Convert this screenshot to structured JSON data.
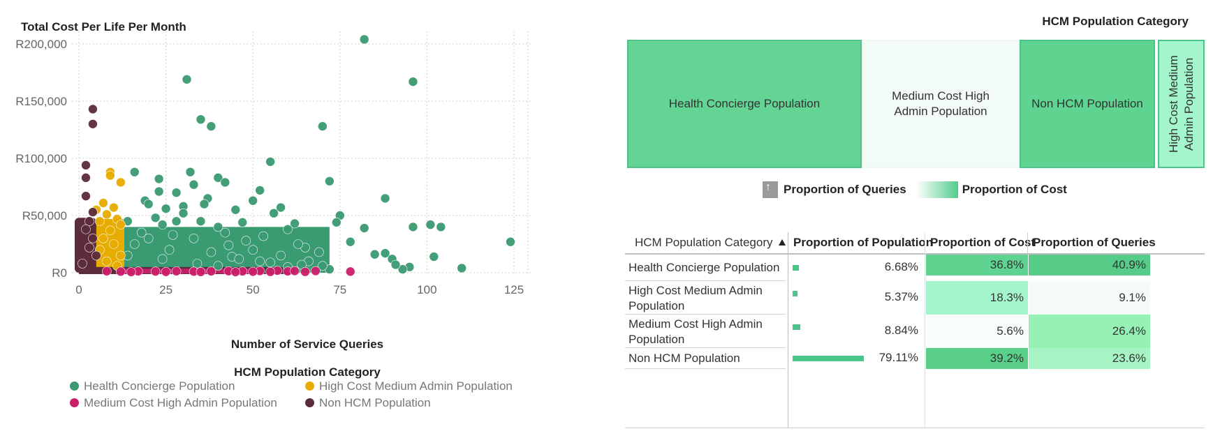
{
  "scatter": {
    "y_axis_title": "Total Cost Per Life Per Month",
    "x_axis_title": "Number of Service Queries",
    "legend_title": "HCM Population Category",
    "legend": [
      {
        "label": "Health Concierge Population",
        "color": "#3a9a72"
      },
      {
        "label": "High Cost Medium Admin Population",
        "color": "#e6ac00"
      },
      {
        "label": "Medium Cost High Admin Population",
        "color": "#cc1f6b"
      },
      {
        "label": "Non HCM Population",
        "color": "#5c2c3a"
      }
    ]
  },
  "chart_data": [
    {
      "type": "scatter",
      "title": "",
      "xlabel": "Number of Service Queries",
      "ylabel": "Total Cost Per Life Per Month",
      "xlim": [
        0,
        128
      ],
      "ylim": [
        0,
        210000
      ],
      "x_ticks": [
        "0",
        "25",
        "50",
        "75",
        "100",
        "125"
      ],
      "y_ticks": [
        "R0",
        "R50,000",
        "R100,000",
        "R150,000",
        "R200,000"
      ],
      "grid": true,
      "legend_position": "bottom",
      "series": [
        {
          "name": "Health Concierge Population",
          "color": "#3a9a72",
          "points": [
            [
              82,
              204000
            ],
            [
              31,
              169000
            ],
            [
              96,
              167000
            ],
            [
              35,
              134000
            ],
            [
              38,
              128000
            ],
            [
              70,
              128000
            ],
            [
              55,
              97000
            ],
            [
              16,
              88000
            ],
            [
              32,
              88000
            ],
            [
              72,
              80000
            ],
            [
              23,
              82000
            ],
            [
              40,
              83000
            ],
            [
              42,
              79000
            ],
            [
              33,
              77000
            ],
            [
              28,
              70000
            ],
            [
              23,
              71000
            ],
            [
              88,
              65000
            ],
            [
              52,
              72000
            ],
            [
              19,
              63000
            ],
            [
              37,
              65000
            ],
            [
              30,
              58000
            ],
            [
              25,
              56000
            ],
            [
              50,
              63000
            ],
            [
              58,
              57000
            ],
            [
              75,
              50000
            ],
            [
              20,
              60000
            ],
            [
              45,
              55000
            ],
            [
              62,
              43000
            ],
            [
              74,
              44000
            ],
            [
              82,
              39000
            ],
            [
              96,
              40000
            ],
            [
              101,
              42000
            ],
            [
              104,
              40000
            ],
            [
              124,
              27000
            ],
            [
              78,
              27000
            ],
            [
              85,
              16000
            ],
            [
              88,
              17000
            ],
            [
              90,
              12000
            ],
            [
              102,
              14000
            ],
            [
              110,
              4000
            ],
            [
              95,
              5000
            ],
            [
              93,
              3000
            ],
            [
              91,
              7000
            ],
            [
              65,
              22000
            ],
            [
              69,
              18000
            ],
            [
              60,
              38000
            ],
            [
              53,
              32000
            ],
            [
              66,
              10000
            ],
            [
              72,
              3000
            ],
            [
              48,
              28000
            ],
            [
              44,
              14000
            ],
            [
              58,
              15000
            ],
            [
              35,
              45000
            ],
            [
              27,
              33000
            ],
            [
              40,
              40000
            ],
            [
              14,
              45000
            ],
            [
              18,
              35000
            ],
            [
              22,
              48000
            ],
            [
              26,
              20000
            ],
            [
              43,
              24000
            ],
            [
              38,
              18000
            ],
            [
              55,
              9000
            ],
            [
              60,
              5000
            ],
            [
              64,
              7000
            ],
            [
              70,
              6000
            ],
            [
              33,
              30000
            ],
            [
              46,
              12000
            ],
            [
              30,
              52000
            ],
            [
              36,
              60000
            ],
            [
              24,
              42000
            ],
            [
              28,
              45000
            ],
            [
              42,
              35000
            ],
            [
              50,
              20000
            ],
            [
              52,
              10000
            ],
            [
              20,
              30000
            ],
            [
              16,
              25000
            ],
            [
              14,
              15000
            ],
            [
              24,
              12000
            ],
            [
              34,
              8000
            ],
            [
              40,
              6000
            ],
            [
              47,
              44000
            ],
            [
              56,
              52000
            ],
            [
              63,
              25000
            ]
          ]
        },
        {
          "name": "High Cost Medium Admin Population",
          "color": "#e6ac00",
          "points": [
            [
              9,
              88000
            ],
            [
              12,
              79000
            ],
            [
              9,
              85000
            ],
            [
              7,
              61000
            ],
            [
              5,
              55000
            ],
            [
              10,
              57000
            ],
            [
              8,
              51000
            ],
            [
              11,
              47000
            ],
            [
              6,
              45000
            ],
            [
              12,
              42000
            ],
            [
              9,
              37000
            ],
            [
              7,
              30000
            ],
            [
              10,
              25000
            ],
            [
              6,
              20000
            ],
            [
              12,
              15000
            ],
            [
              8,
              10000
            ],
            [
              11,
              6000
            ]
          ]
        },
        {
          "name": "Medium Cost High Admin Population",
          "color": "#cc1f6b",
          "points": [
            [
              78,
              1000
            ],
            [
              68,
              1500
            ],
            [
              60,
              1200
            ],
            [
              57,
              1800
            ],
            [
              52,
              1500
            ],
            [
              47,
              1200
            ],
            [
              43,
              1400
            ],
            [
              38,
              1200
            ],
            [
              33,
              1000
            ],
            [
              28,
              1300
            ],
            [
              22,
              1100
            ],
            [
              17,
              1200
            ],
            [
              12,
              1000
            ],
            [
              8,
              1300
            ],
            [
              65,
              800
            ],
            [
              55,
              800
            ],
            [
              62,
              1500
            ],
            [
              50,
              900
            ],
            [
              45,
              600
            ],
            [
              35,
              700
            ],
            [
              25,
              800
            ],
            [
              15,
              600
            ]
          ]
        },
        {
          "name": "Non HCM Population",
          "color": "#5c2c3a",
          "points": [
            [
              4,
              143000
            ],
            [
              4,
              130000
            ],
            [
              2,
              94000
            ],
            [
              2,
              83000
            ],
            [
              2,
              67000
            ],
            [
              4,
              53000
            ],
            [
              3,
              45000
            ],
            [
              2,
              38000
            ],
            [
              4,
              30000
            ],
            [
              3,
              22000
            ],
            [
              5,
              15000
            ],
            [
              1,
              8000
            ]
          ]
        }
      ]
    },
    {
      "type": "treemap",
      "title": "HCM Population Category",
      "size_measure": "Proportion of Queries",
      "color_measure": "Proportion of Cost",
      "tiles": [
        {
          "label": "Health Concierge Population",
          "queries": 40.9,
          "cost": 36.8
        },
        {
          "label": "Medium Cost High Admin Population",
          "queries": 26.4,
          "cost": 5.6
        },
        {
          "label": "Non HCM Population",
          "queries": 23.6,
          "cost": 39.2
        },
        {
          "label": "High Cost Medium Admin Population",
          "queries": 9.1,
          "cost": 18.3
        }
      ]
    },
    {
      "type": "table",
      "columns": [
        "HCM Population Category",
        "Proportion of Population",
        "Proportion of Cost",
        "Proportion of Queries"
      ],
      "rows": [
        {
          "category": "Health Concierge Population",
          "population": "6.68%",
          "population_value": 6.68,
          "cost": "36.8%",
          "queries": "40.9%"
        },
        {
          "category": "High Cost Medium Admin Population",
          "population": "5.37%",
          "population_value": 5.37,
          "cost": "18.3%",
          "queries": "9.1%"
        },
        {
          "category": "Medium Cost High Admin Population",
          "population": "8.84%",
          "population_value": 8.84,
          "cost": "5.6%",
          "queries": "26.4%"
        },
        {
          "category": "Non HCM Population",
          "population": "79.11%",
          "population_value": 79.11,
          "cost": "39.2%",
          "queries": "23.6%"
        }
      ]
    }
  ],
  "treemap": {
    "title": "HCM Population Category",
    "tiles": [
      {
        "label": "Health Concierge Population",
        "color": "#64d494"
      },
      {
        "label": "Medium Cost High Admin Population",
        "color": "#f3fbf7"
      },
      {
        "label": "Non HCM Population",
        "color": "#5fd390"
      },
      {
        "label": "High Cost Medium Admin Population",
        "color": "#a4f5cc"
      }
    ],
    "legend_size_label": "Proportion of Queries",
    "legend_color_label": "Proportion of Cost"
  },
  "table": {
    "header_category": "HCM Population Category",
    "header_population": "Proportion of Population",
    "header_cost": "Proportion of Cost",
    "header_queries": "Proportion of Queries",
    "rows": [
      {
        "category": "Health Concierge Population",
        "population": "6.68%",
        "cost": "36.8%",
        "queries": "40.9%",
        "cost_color": "#5fd390",
        "queries_color": "#56cc88"
      },
      {
        "category": "High Cost Medium Admin Population",
        "population": "5.37%",
        "cost": "18.3%",
        "queries": "9.1%",
        "cost_color": "#a4f5cc",
        "queries_color": "#f5fbf8"
      },
      {
        "category": "Medium Cost High Admin Population",
        "population": "8.84%",
        "cost": "5.6%",
        "queries": "26.4%",
        "cost_color": "#f8fcfa",
        "queries_color": "#95f2b4"
      },
      {
        "category": "Non HCM Population",
        "population": "79.11%",
        "cost": "39.2%",
        "queries": "23.6%",
        "cost_color": "#59cf8a",
        "queries_color": "#a6f4c4"
      }
    ]
  }
}
